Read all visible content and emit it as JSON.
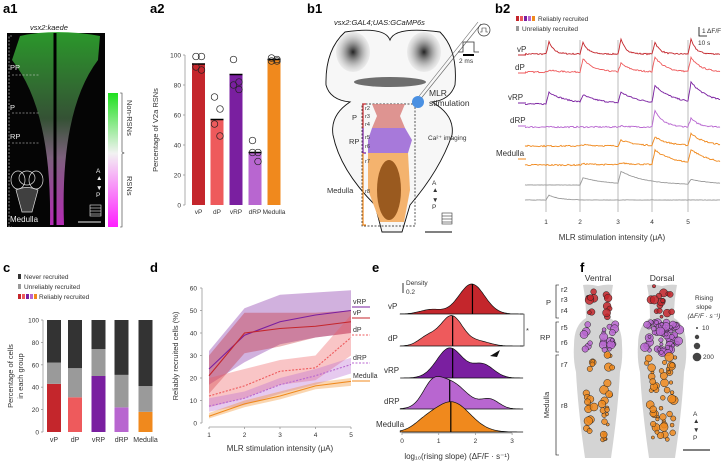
{
  "panels": {
    "a1": {
      "label": "a1",
      "title": "vsx2:kaede",
      "regions": [
        "PP",
        "P",
        "RP",
        "Medulla"
      ],
      "colorbar_top": "Non-RSNs",
      "colorbar_bottom": "RSNs",
      "orient_a": "A",
      "orient_p": "P"
    },
    "a2": {
      "label": "a2"
    },
    "b1": {
      "label": "b1",
      "title": "vsx2:GAL4;UAS:GCaMP6s",
      "stim_label_1": "MLR",
      "stim_label_2": "stimulation",
      "imaging_label": "Ca²⁺ imaging",
      "pulse_label": "2 ms",
      "groups": [
        "P",
        "RP",
        "Medulla"
      ],
      "rhombomeres": [
        "r2",
        "r3",
        "r4",
        "r5",
        "r6",
        "r7",
        "r8"
      ],
      "orient_a": "A",
      "orient_p": "P"
    },
    "b2": {
      "label": "b2",
      "legend_reliable": "Reliably recruited",
      "legend_unreliable": "Unreliably recruited",
      "scale_y": "1 ΔF/F",
      "scale_x": "10 s",
      "xlabel": "MLR stimulation intensity (μA)",
      "trace_labels": [
        "vP",
        "dP",
        "vRP",
        "dRP",
        "Medulla"
      ],
      "ticks": [
        "1",
        "2",
        "3",
        "4",
        "5"
      ]
    },
    "c": {
      "label": "c",
      "legend": [
        "Never recruited",
        "Unreliably recruited",
        "Reliably recruited"
      ]
    },
    "d": {
      "label": "d"
    },
    "e": {
      "label": "e",
      "density_label": "Density",
      "density_value": "0.2",
      "significance": "*"
    },
    "f": {
      "label": "f",
      "ventral": "Ventral",
      "dorsal": "Dorsal",
      "groups": [
        "P",
        "RP",
        "Medulla"
      ],
      "rhombomeres": [
        "r2",
        "r3",
        "r4",
        "r5",
        "r6",
        "r7",
        "r8"
      ],
      "legend_title_1": "Rising",
      "legend_title_2": "slope",
      "legend_title_3": "(ΔF/F · s⁻¹)",
      "legend_sizes": [
        "10",
        "200"
      ],
      "orient_a": "A",
      "orient_p": "P"
    }
  },
  "colors": {
    "vP": "#c4262c",
    "dP": "#ee5a5c",
    "vRP": "#7a1fa0",
    "dRP": "#b866d0",
    "Medulla": "#f0891d",
    "unreliable": "#9a9a9a",
    "never": "#333333",
    "stim": "#4a90e2"
  },
  "chart_data": [
    {
      "id": "a2",
      "type": "bar",
      "ylabel": "Percentage of V2a RSNs",
      "ylim": [
        0,
        100
      ],
      "yticks": [
        "0",
        "20",
        "40",
        "60",
        "80",
        "100"
      ],
      "categories": [
        "vP",
        "dP",
        "vRP",
        "dRP",
        "Medulla"
      ],
      "values": [
        94,
        57,
        87,
        35,
        97
      ],
      "points": [
        [
          99,
          99,
          92,
          90
        ],
        [
          72,
          64,
          54,
          46
        ],
        [
          97,
          82,
          80,
          77
        ],
        [
          43,
          35,
          35,
          29
        ],
        [
          98,
          97,
          96,
          96
        ]
      ]
    },
    {
      "id": "b2",
      "type": "line",
      "xlabel": "MLR stimulation intensity (μA)",
      "x": [
        1,
        2,
        3,
        4,
        5
      ],
      "series": [
        {
          "name": "vP",
          "group": "reliable",
          "peak_dff": [
            1.0,
            1.0,
            1.2,
            1.0,
            1.2
          ]
        },
        {
          "name": "dP",
          "group": "reliable",
          "peak_dff": [
            0.15,
            1.1,
            0.7,
            1.25,
            1.15
          ]
        },
        {
          "name": "vRP",
          "group": "reliable",
          "peak_dff": [
            1.0,
            0.6,
            0.9,
            1.4,
            1.6
          ]
        },
        {
          "name": "dRP",
          "group": "reliable",
          "peak_dff": [
            0,
            0,
            0.1,
            1.4,
            0.7
          ]
        },
        {
          "name": "Medulla",
          "group": "reliable",
          "peak_dff": [
            0,
            0.1,
            0.5,
            0.7,
            1.0
          ]
        },
        {
          "name": "Medulla",
          "group": "reliable",
          "peak_dff": [
            0,
            0.1,
            0.15,
            1.2,
            1.1
          ]
        },
        {
          "group": "unreliable",
          "peak_dff": [
            0,
            0.6,
            1.0,
            0,
            0.4
          ]
        },
        {
          "group": "unreliable",
          "peak_dff": [
            0.4,
            0,
            0,
            0,
            0
          ]
        }
      ]
    },
    {
      "id": "c",
      "type": "bar",
      "stacked": true,
      "ylabel": "Percentage of cells in each group",
      "ylim": [
        0,
        100
      ],
      "yticks": [
        "0",
        "20",
        "40",
        "60",
        "80",
        "100"
      ],
      "categories": [
        "vP",
        "dP",
        "vRP",
        "dRP",
        "Medulla"
      ],
      "series": [
        {
          "name": "Reliably recruited",
          "values": [
            43,
            31,
            50,
            22,
            18
          ]
        },
        {
          "name": "Unreliably recruited",
          "values": [
            19,
            26,
            24,
            29,
            23
          ]
        },
        {
          "name": "Never recruited",
          "values": [
            38,
            43,
            26,
            49,
            59
          ]
        }
      ]
    },
    {
      "id": "d",
      "type": "line",
      "xlabel": "MLR stimulation intensity (μA)",
      "ylabel": "Reliably recruited cells (%)",
      "xlim": [
        1,
        5
      ],
      "ylim": [
        0,
        60
      ],
      "xticks": [
        "1",
        "2",
        "3",
        "4",
        "5"
      ],
      "yticks": [
        "0",
        "10",
        "20",
        "30",
        "40",
        "50",
        "60"
      ],
      "x": [
        1,
        2,
        3,
        4,
        5
      ],
      "series": [
        {
          "name": "vRP",
          "values": [
            24,
            39,
            45,
            48,
            50
          ],
          "lower": [
            17,
            27,
            35,
            38,
            40
          ],
          "upper": [
            32,
            51,
            57,
            58,
            59
          ],
          "dashed": false
        },
        {
          "name": "vP",
          "values": [
            21,
            40,
            42,
            43,
            45
          ],
          "lower": [
            13,
            31,
            34,
            38,
            40
          ],
          "upper": [
            30,
            49,
            49,
            49,
            50
          ],
          "dashed": false
        },
        {
          "name": "dP",
          "values": [
            12,
            16.5,
            23,
            24.5,
            38
          ],
          "lower": [
            7,
            11,
            17,
            19,
            30
          ],
          "upper": [
            20,
            24,
            28,
            30,
            48
          ],
          "dashed": true
        },
        {
          "name": "dRP",
          "values": [
            7.5,
            11,
            17,
            21,
            26
          ],
          "lower": [
            5,
            8,
            13,
            17,
            22
          ],
          "upper": [
            11,
            14,
            20,
            24,
            29
          ],
          "dashed": true
        },
        {
          "name": "Medulla",
          "values": [
            3,
            8.5,
            12,
            16.5,
            18.5
          ],
          "lower": [
            2,
            7,
            10.5,
            15,
            16.5
          ],
          "upper": [
            4.5,
            10,
            14,
            18,
            20
          ],
          "dashed": false
        }
      ]
    },
    {
      "id": "e",
      "type": "ridgeline",
      "xlabel": "log₁₀(rising slope) (ΔF/F · s⁻¹)",
      "xlim": [
        0,
        3
      ],
      "xticks": [
        "0",
        "1",
        "2",
        "3"
      ],
      "categories": [
        "vP",
        "dP",
        "vRP",
        "dRP",
        "Medulla"
      ],
      "medians": [
        1.92,
        1.38,
        1.38,
        1.3,
        1.33
      ]
    }
  ]
}
